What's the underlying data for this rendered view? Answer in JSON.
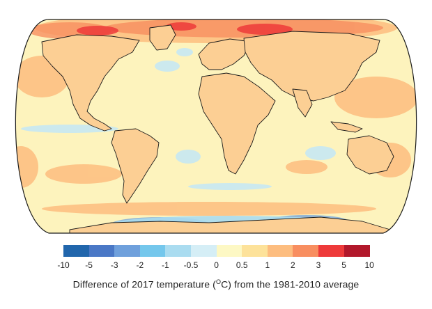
{
  "legend": {
    "colors": [
      "#2166ac",
      "#4a78c6",
      "#6fa0dc",
      "#74c7ec",
      "#aadcf0",
      "#d5eef6",
      "#fdf8c4",
      "#fde29a",
      "#fdbd7f",
      "#f88e60",
      "#ee3a3a",
      "#b2182b"
    ],
    "ticks": [
      "-10",
      "-5",
      "-3",
      "-2",
      "-1",
      "-0.5",
      "0",
      "0.5",
      "1",
      "2",
      "3",
      "5",
      "10"
    ]
  },
  "caption": {
    "prefix": "Difference of 2017 temperature (",
    "sup": "O",
    "suffix": "C) from the 1981-2010 average"
  },
  "map": {
    "ocean_base_color": "#fdf3bd",
    "land_color": "#fccf94",
    "outline_color": "#1a1a1a"
  }
}
